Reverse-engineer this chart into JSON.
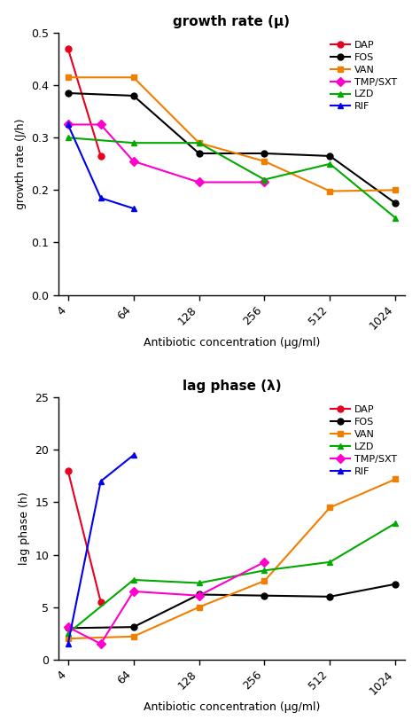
{
  "x_ticks": [
    4,
    64,
    128,
    256,
    512,
    1024
  ],
  "x_label": "Antibiotic concentration (μg/ml)",
  "growth_rate": {
    "title": "growth rate (μ)",
    "ylabel": "growth rate (J/h)",
    "ylim": [
      0.0,
      0.5
    ],
    "yticks": [
      0.0,
      0.1,
      0.2,
      0.3,
      0.4,
      0.5
    ],
    "series": {
      "DAP": {
        "color": "#e8001c",
        "marker": "o",
        "x": [
          4,
          16
        ],
        "y": [
          0.47,
          0.265
        ]
      },
      "FOS": {
        "color": "#000000",
        "marker": "o",
        "x": [
          4,
          64,
          128,
          256,
          512,
          1024
        ],
        "y": [
          0.385,
          0.38,
          0.27,
          0.27,
          0.265,
          0.175
        ]
      },
      "VAN": {
        "color": "#f07f00",
        "marker": "s",
        "x": [
          4,
          64,
          128,
          256,
          512,
          1024
        ],
        "y": [
          0.415,
          0.415,
          0.29,
          0.255,
          0.198,
          0.2
        ]
      },
      "TMP/SXT": {
        "color": "#ff00cc",
        "marker": "D",
        "x": [
          4,
          16,
          64,
          128,
          256
        ],
        "y": [
          0.325,
          0.325,
          0.255,
          0.215,
          0.215
        ]
      },
      "LZD": {
        "color": "#00aa00",
        "marker": "^",
        "x": [
          4,
          64,
          128,
          256,
          512,
          1024
        ],
        "y": [
          0.3,
          0.29,
          0.29,
          0.22,
          0.25,
          0.147
        ]
      },
      "RIF": {
        "color": "#0000ee",
        "marker": "^",
        "x": [
          4,
          16,
          64
        ],
        "y": [
          0.325,
          0.185,
          0.165
        ]
      }
    },
    "legend_order": [
      "DAP",
      "FOS",
      "VAN",
      "TMP/SXT",
      "LZD",
      "RIF"
    ]
  },
  "lag_phase": {
    "title": "lag phase (λ)",
    "ylabel": "lag phase (h)",
    "ylim": [
      0,
      25
    ],
    "yticks": [
      0,
      5,
      10,
      15,
      20,
      25
    ],
    "series": {
      "DAP": {
        "color": "#e8001c",
        "marker": "o",
        "x": [
          4,
          16
        ],
        "y": [
          18.0,
          5.5
        ]
      },
      "FOS": {
        "color": "#000000",
        "marker": "o",
        "x": [
          4,
          64,
          128,
          256,
          512,
          1024
        ],
        "y": [
          3.0,
          3.1,
          6.2,
          6.1,
          6.0,
          7.2
        ]
      },
      "VAN": {
        "color": "#f07f00",
        "marker": "s",
        "x": [
          4,
          64,
          128,
          256,
          512,
          1024
        ],
        "y": [
          2.0,
          2.2,
          5.0,
          7.5,
          14.5,
          17.2
        ]
      },
      "LZD": {
        "color": "#00aa00",
        "marker": "^",
        "x": [
          4,
          64,
          128,
          256,
          512,
          1024
        ],
        "y": [
          2.5,
          7.6,
          7.3,
          8.5,
          9.3,
          13.0
        ]
      },
      "TMP/SXT": {
        "color": "#ff00cc",
        "marker": "D",
        "x": [
          4,
          16,
          64,
          128,
          256
        ],
        "y": [
          3.1,
          1.5,
          6.5,
          6.1,
          9.3
        ]
      },
      "RIF": {
        "color": "#0000ee",
        "marker": "^",
        "x": [
          4,
          16,
          64
        ],
        "y": [
          1.5,
          17.0,
          19.5
        ]
      }
    },
    "legend_order": [
      "DAP",
      "FOS",
      "VAN",
      "LZD",
      "TMP/SXT",
      "RIF"
    ]
  }
}
